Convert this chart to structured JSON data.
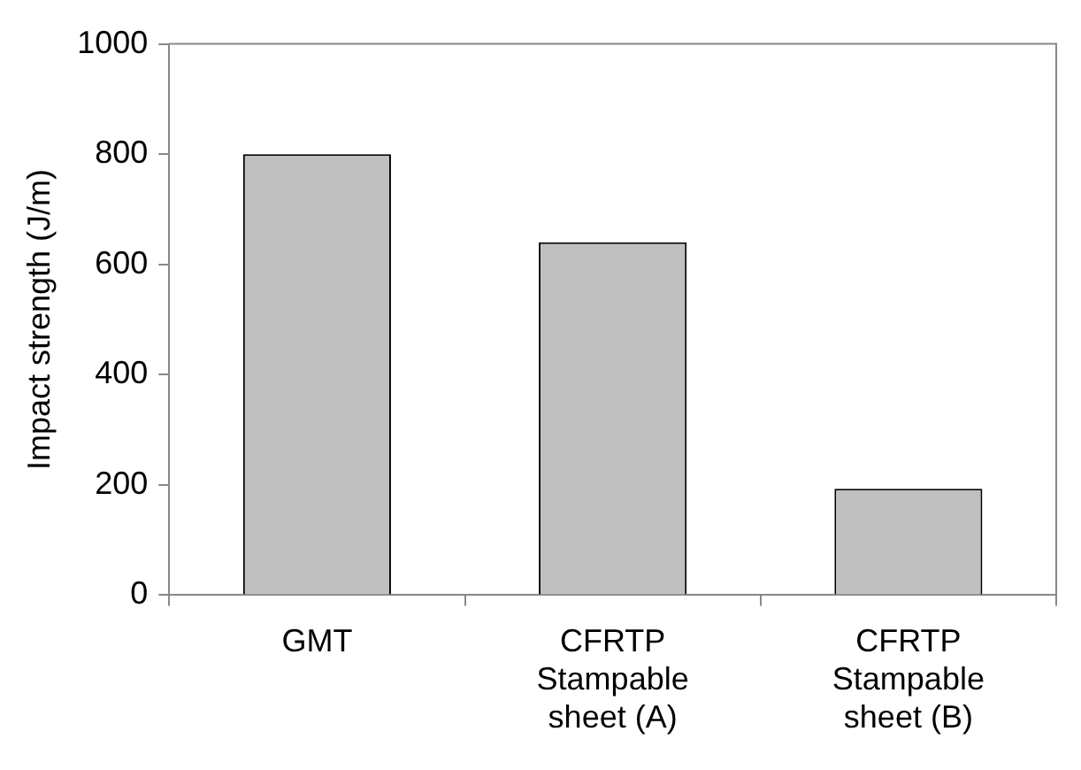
{
  "chart_data": {
    "type": "bar",
    "ylabel": "Impact strength (J/m)",
    "categories": [
      "GMT",
      "CFRTP\nStampable\nsheet (A)",
      "CFRTP\nStampable\nsheet (B)"
    ],
    "values": [
      800,
      640,
      193
    ],
    "color": "#c0c0c0",
    "ylim": [
      0,
      1000
    ],
    "yticks": [
      0,
      200,
      400,
      600,
      800,
      1000
    ],
    "grid": false,
    "legend": false
  }
}
